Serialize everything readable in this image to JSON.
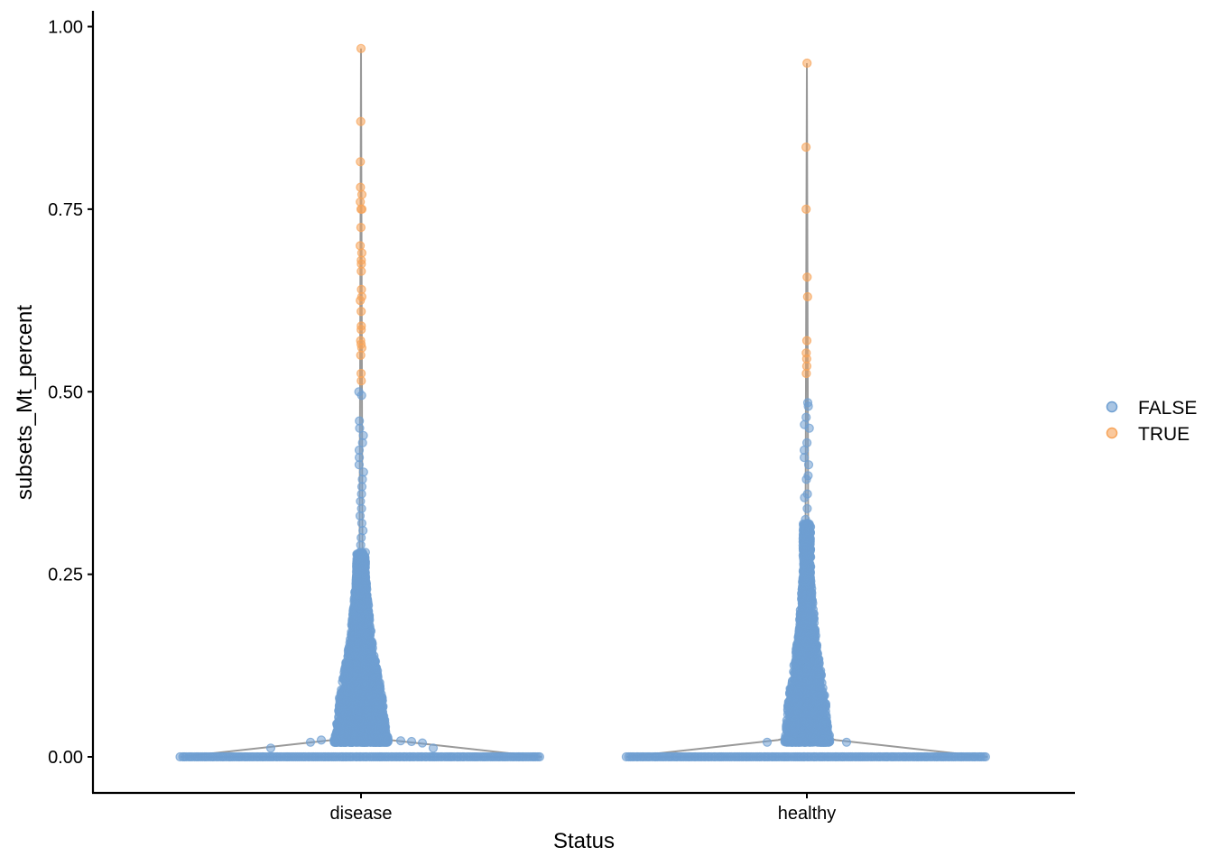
{
  "chart_data": {
    "type": "violin-scatter",
    "xlabel": "Status",
    "ylabel": "subsets_Mt_percent",
    "categories": [
      "disease",
      "healthy"
    ],
    "ylim": [
      -0.05,
      1.02
    ],
    "yticks": [
      0.0,
      0.25,
      0.5,
      0.75,
      1.0
    ],
    "ytick_labels": [
      "0.00",
      "0.25",
      "0.50",
      "0.75",
      "1.00"
    ],
    "grid": false,
    "legend": {
      "placement": "right",
      "entries": [
        {
          "label": "FALSE",
          "color": "#6f9fd1"
        },
        {
          "label": "TRUE",
          "color": "#f7a45a"
        }
      ]
    },
    "colors": {
      "false_points": "#6f9fd1",
      "true_points": "#f7a45a",
      "violin_outline": "#999999",
      "axis": "#000000"
    },
    "series": [
      {
        "category": "disease",
        "true_points": [
          0.97,
          0.87,
          0.815,
          0.78,
          0.77,
          0.76,
          0.75,
          0.75,
          0.725,
          0.7,
          0.69,
          0.68,
          0.675,
          0.665,
          0.64,
          0.63,
          0.625,
          0.61,
          0.59,
          0.585,
          0.57,
          0.565,
          0.56,
          0.55,
          0.525,
          0.515
        ],
        "false_upper_points": [
          0.5,
          0.495,
          0.46,
          0.45,
          0.44,
          0.43,
          0.42,
          0.41,
          0.4,
          0.39,
          0.38,
          0.37,
          0.36,
          0.35,
          0.34,
          0.33,
          0.32,
          0.31,
          0.3,
          0.29,
          0.28,
          0.27,
          0.26
        ],
        "false_low_offsets": [
          [
            -0.5,
            0.012
          ],
          [
            -0.28,
            0.02
          ],
          [
            -0.22,
            0.023
          ],
          [
            -0.14,
            0.022
          ],
          [
            -0.1,
            0.027
          ],
          [
            0.14,
            0.025
          ],
          [
            0.22,
            0.022
          ],
          [
            0.28,
            0.021
          ],
          [
            0.34,
            0.019
          ],
          [
            0.4,
            0.012
          ]
        ]
      },
      {
        "category": "healthy",
        "true_points": [
          0.95,
          0.835,
          0.75,
          0.657,
          0.63,
          0.57,
          0.553,
          0.545,
          0.535,
          0.525
        ],
        "false_upper_points": [
          0.485,
          0.48,
          0.465,
          0.455,
          0.45,
          0.43,
          0.42,
          0.41,
          0.4,
          0.385,
          0.38,
          0.36,
          0.355,
          0.34,
          0.325,
          0.31,
          0.3,
          0.29,
          0.28,
          0.27,
          0.26
        ],
        "false_low_offsets": [
          [
            -0.22,
            0.02
          ],
          [
            0.22,
            0.02
          ]
        ]
      }
    ]
  }
}
